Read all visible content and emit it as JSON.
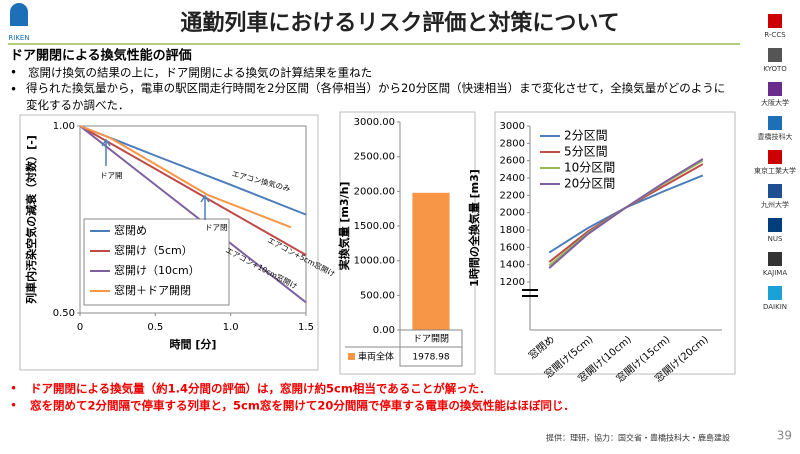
{
  "slide": {
    "title": "通勤列車におけるリスク評価と対策について",
    "logo": "RIKEN",
    "heading": "ドア開閉による換気性能の評価",
    "bullets": [
      "窓開け換気の結果の上に，ドア開閉による換気の計算結果を重ねた",
      "得られた換気量から，電車の駅区間走行時間を2分区間（各停相当）から20分区間（快速相当）まで変化させて，全換気量がどのように変化するか調べた．"
    ],
    "conclusions": [
      "ドア開閉による換気量（約1.4分間の評価）は，窓開け約5cm相当であることが解った．",
      "窓を閉めて2分間隔で停車する列車と，5cm窓を開けて20分間隔で停車する電車の換気性能はほぼ同じ．"
    ],
    "credit": "提供：理研，協力：国交省・豊橋技科大・鹿島建設",
    "page": 39,
    "partners": [
      "R-CCS",
      "KYOTO",
      "大阪大学",
      "豊橋技科大",
      "東京工業大学",
      "九州大学",
      "NUS",
      "KAJIMA",
      "DAIKIN"
    ]
  },
  "chart_data": [
    {
      "type": "line",
      "log_y": true,
      "ylabel": "列車内汚染空気の減衰（対数）[-]",
      "xlabel": "時間 [分]",
      "xlim": [
        0,
        1.5
      ],
      "xticks": [
        0,
        0.5,
        {
          "value": 1,
          "label": "1.0"
        },
        1.5
      ],
      "ylim": [
        0.5,
        1
      ],
      "yticks": [
        {
          "value": 1,
          "label": "1.00"
        },
        {
          "value": 0.5,
          "label": "0.50"
        }
      ],
      "grid": false,
      "series": [
        {
          "name": "窓閉め",
          "color": "#4a7ebb",
          "x": [
            0,
            0.5,
            1,
            1.5
          ],
          "values": [
            1,
            0.896,
            0.804,
            0.72
          ]
        },
        {
          "name": "窓開け（5cm）",
          "color": "#be4b48",
          "x": [
            0,
            0.5,
            1,
            1.5
          ],
          "values": [
            1,
            0.853,
            0.727,
            0.62
          ]
        },
        {
          "name": "窓開け（10cm）",
          "color": "#7d60a0",
          "x": [
            0,
            0.5,
            1,
            1.5
          ],
          "values": [
            1,
            0.804,
            0.647,
            0.52
          ]
        },
        {
          "name": "窓閉＋ドア開閉",
          "color": "#f79646",
          "x": [
            0,
            0.2,
            0.85,
            1.4
          ],
          "values": [
            1,
            0.957,
            0.774,
            0.687
          ]
        }
      ],
      "annotations": [
        "ドア開",
        "ドア閉",
        "エアコン換気のみ",
        "エアコン+5cm窓開け",
        "エアコン+10cm窓開け"
      ],
      "legend": "bottom-left"
    },
    {
      "type": "bar",
      "ylabel": "実換気量 [m3/h]",
      "ylim": [
        0,
        3000
      ],
      "yticks": [
        {
          "value": 0,
          "label": "0.00"
        },
        {
          "value": 500,
          "label": "500.00"
        },
        {
          "value": 1000,
          "label": "1000.00"
        },
        {
          "value": 1500,
          "label": "1500.00"
        },
        {
          "value": 2000,
          "label": "2000.00"
        },
        {
          "value": 2500,
          "label": "2500.00"
        },
        {
          "value": 3000,
          "label": "3000.00"
        }
      ],
      "categories": [
        "ドア開閉"
      ],
      "series": [
        {
          "name": "車両全体",
          "color": "#f79646",
          "values": [
            1978.98
          ]
        }
      ]
    },
    {
      "type": "line",
      "ylabel": "1時間の全換気量 [m3]",
      "ylim": [
        1200,
        3000
      ],
      "yticks": [
        1200,
        1400,
        1600,
        1800,
        2000,
        2200,
        2400,
        2600,
        2800,
        3000
      ],
      "categories": [
        "窓閉め",
        "窓開け(5cm)",
        "窓開け(10cm)",
        "窓開け(15cm)",
        "窓開け(20cm)"
      ],
      "legend": "top-left",
      "series": [
        {
          "name": "2分区間",
          "color": "#4a7ebb",
          "values": [
            1540,
            1820,
            2060,
            2250,
            2430
          ]
        },
        {
          "name": "5分区間",
          "color": "#be4b48",
          "values": [
            1430,
            1780,
            2060,
            2310,
            2560
          ]
        },
        {
          "name": "10分区間",
          "color": "#98b954",
          "values": [
            1390,
            1760,
            2060,
            2340,
            2600
          ]
        },
        {
          "name": "20分区間",
          "color": "#7d60a0",
          "values": [
            1360,
            1750,
            2060,
            2350,
            2620
          ]
        }
      ]
    }
  ]
}
